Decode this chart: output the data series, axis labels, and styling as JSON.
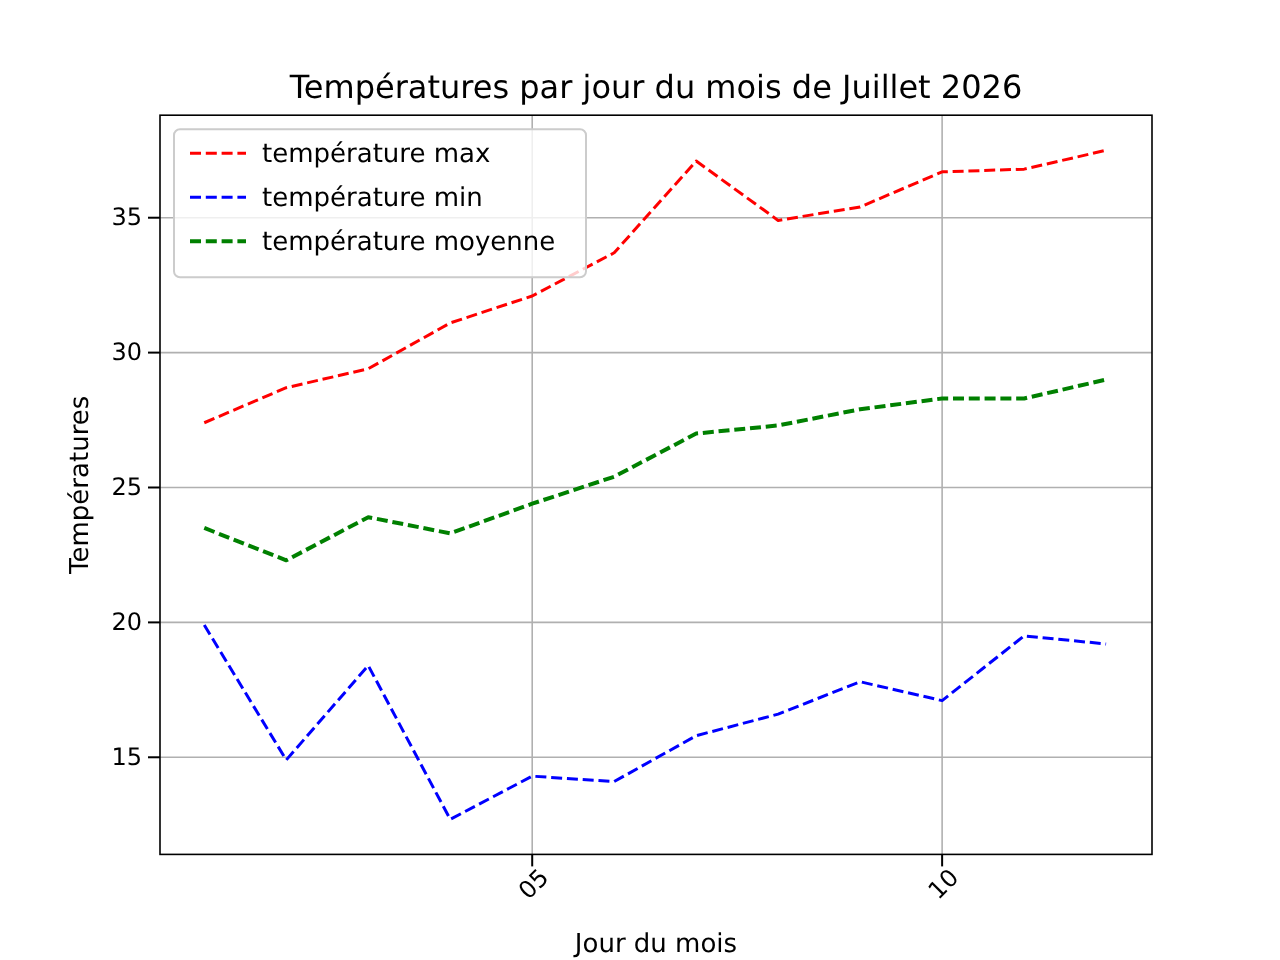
{
  "chart_data": {
    "type": "line",
    "title": "Températures par jour du mois de Juillet 2026",
    "xlabel": "Jour du mois",
    "ylabel": "Températures",
    "x": [
      1,
      2,
      3,
      4,
      5,
      6,
      7,
      8,
      9,
      10,
      11,
      12
    ],
    "series": [
      {
        "name": "température max",
        "color": "#ff0000",
        "values": [
          27.4,
          28.7,
          29.4,
          31.1,
          32.1,
          33.7,
          37.1,
          34.9,
          35.4,
          36.7,
          36.8,
          37.5
        ]
      },
      {
        "name": "température min",
        "color": "#0000ff",
        "values": [
          19.9,
          14.9,
          18.4,
          12.7,
          14.3,
          14.1,
          15.8,
          16.6,
          17.8,
          17.1,
          19.5,
          19.2
        ]
      },
      {
        "name": "température moyenne",
        "color": "#008000",
        "values": [
          23.5,
          22.3,
          23.9,
          23.3,
          24.4,
          25.4,
          27.0,
          27.3,
          27.9,
          28.3,
          28.3,
          29.0
        ]
      }
    ],
    "xlim": [
      0.46,
      12.56
    ],
    "xticks": [
      {
        "value": 5,
        "label": "05"
      },
      {
        "value": 10,
        "label": "10"
      }
    ],
    "ylim": [
      11.4,
      38.8
    ],
    "yticks": [
      15,
      20,
      25,
      30,
      35
    ],
    "grid": true,
    "legend": "top left",
    "line_style": "dashed"
  }
}
